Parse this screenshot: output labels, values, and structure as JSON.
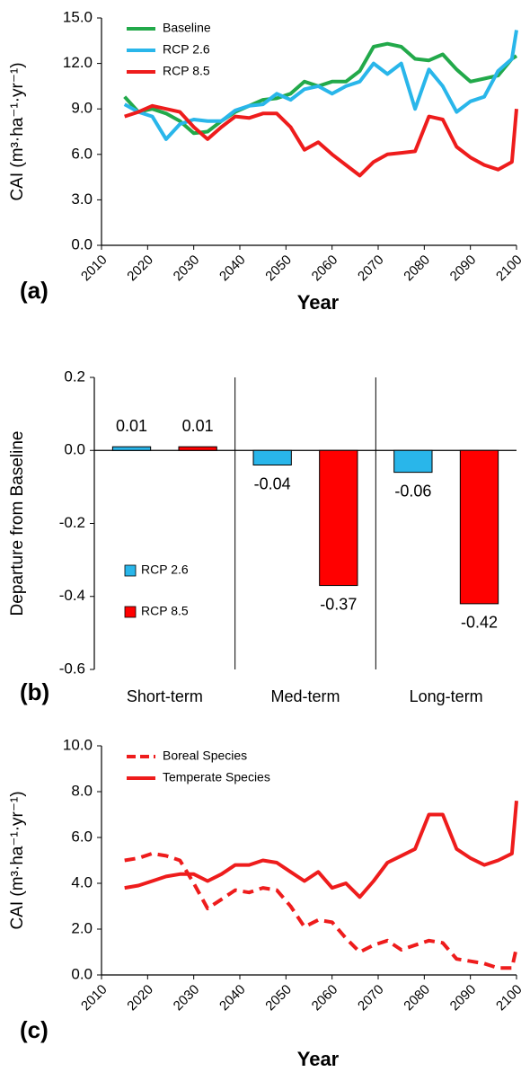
{
  "chart_data": [
    {
      "type": "line",
      "panel_label": "(a)",
      "xlabel": "Year",
      "ylabel": "CAI (m³·ha⁻¹·yr⁻¹)",
      "x": [
        2015,
        2018,
        2021,
        2024,
        2027,
        2030,
        2033,
        2036,
        2039,
        2042,
        2045,
        2048,
        2051,
        2054,
        2057,
        2060,
        2063,
        2066,
        2069,
        2072,
        2075,
        2078,
        2081,
        2084,
        2087,
        2090,
        2093,
        2096,
        2099,
        2100
      ],
      "series": [
        {
          "name": "Baseline",
          "color": "#22a94a",
          "values": [
            9.8,
            8.8,
            9.0,
            8.7,
            8.2,
            7.4,
            7.5,
            8.2,
            8.8,
            9.2,
            9.6,
            9.7,
            10.0,
            10.8,
            10.5,
            10.8,
            10.8,
            11.5,
            13.1,
            13.3,
            13.1,
            12.3,
            12.2,
            12.6,
            11.6,
            10.8,
            11.0,
            11.2,
            12.3,
            12.5
          ]
        },
        {
          "name": "RCP 2.6",
          "color": "#29b6ea",
          "values": [
            9.3,
            8.8,
            8.5,
            7.0,
            8.0,
            8.3,
            8.2,
            8.2,
            8.9,
            9.2,
            9.3,
            10.0,
            9.6,
            10.3,
            10.5,
            10.0,
            10.5,
            10.8,
            12.0,
            11.3,
            12.0,
            9.0,
            11.6,
            10.5,
            8.8,
            9.5,
            9.8,
            11.5,
            12.3,
            14.2
          ]
        },
        {
          "name": "RCP 8.5",
          "color": "#ee1c1c",
          "values": [
            8.5,
            8.8,
            9.2,
            9.0,
            8.8,
            7.8,
            7.0,
            7.8,
            8.5,
            8.4,
            8.7,
            8.7,
            7.8,
            6.3,
            6.8,
            6.0,
            5.3,
            4.6,
            5.5,
            6.0,
            6.1,
            6.2,
            8.5,
            8.3,
            6.5,
            5.8,
            5.3,
            5.0,
            5.5,
            9.0
          ]
        }
      ],
      "xlim": [
        2010,
        2100
      ],
      "xticks": [
        2010,
        2020,
        2030,
        2040,
        2050,
        2060,
        2070,
        2080,
        2090,
        2100
      ],
      "ylim": [
        0,
        15
      ],
      "yticks": [
        {
          "value": 0,
          "label": "0.0"
        },
        {
          "value": 3,
          "label": "3.0"
        },
        {
          "value": 6,
          "label": "6.0"
        },
        {
          "value": 9,
          "label": "9.0"
        },
        {
          "value": 12,
          "label": "12.0"
        },
        {
          "value": 15,
          "label": "15.0"
        }
      ],
      "legend": "upper left"
    },
    {
      "type": "bar",
      "panel_label": "(b)",
      "ylabel": "Departure from Baseline",
      "categories": [
        "Short-term",
        "Med-term",
        "Long-term"
      ],
      "series": [
        {
          "name": "RCP 2.6",
          "color": "#29b6ea",
          "values": [
            0.01,
            -0.04,
            -0.06
          ]
        },
        {
          "name": "RCP 8.5",
          "color": "#ff0000",
          "values": [
            0.01,
            -0.37,
            -0.42
          ]
        }
      ],
      "ylim": [
        -0.6,
        0.2
      ],
      "yticks": [
        -0.6,
        -0.4,
        -0.2,
        {
          "value": 0,
          "label": "0.0"
        },
        0.2
      ],
      "legend": "lower left"
    },
    {
      "type": "line",
      "panel_label": "(c)",
      "xlabel": "Year",
      "ylabel": "CAI (m³·ha⁻¹·yr⁻¹)",
      "x": [
        2015,
        2018,
        2021,
        2024,
        2027,
        2030,
        2033,
        2036,
        2039,
        2042,
        2045,
        2048,
        2051,
        2054,
        2057,
        2060,
        2063,
        2066,
        2069,
        2072,
        2075,
        2078,
        2081,
        2084,
        2087,
        2090,
        2093,
        2096,
        2099,
        2100
      ],
      "series": [
        {
          "name": "Boreal Species",
          "color": "#ee1c1c",
          "line_style": "dashed",
          "values": [
            5.0,
            5.1,
            5.3,
            5.2,
            5.0,
            4.0,
            2.9,
            3.3,
            3.7,
            3.6,
            3.8,
            3.7,
            3.0,
            2.1,
            2.4,
            2.3,
            1.6,
            1.0,
            1.3,
            1.5,
            1.1,
            1.3,
            1.5,
            1.4,
            0.7,
            0.6,
            0.5,
            0.3,
            0.3,
            1.2
          ]
        },
        {
          "name": "Temperate Species",
          "color": "#ee1c1c",
          "line_style": "solid",
          "values": [
            3.8,
            3.9,
            4.1,
            4.3,
            4.4,
            4.4,
            4.1,
            4.4,
            4.8,
            4.8,
            5.0,
            4.9,
            4.5,
            4.1,
            4.5,
            3.8,
            4.0,
            3.4,
            4.1,
            4.9,
            5.2,
            5.5,
            7.0,
            7.0,
            5.5,
            5.1,
            4.8,
            5.0,
            5.3,
            7.6
          ]
        }
      ],
      "xlim": [
        2010,
        2100
      ],
      "xticks": [
        2010,
        2020,
        2030,
        2040,
        2050,
        2060,
        2070,
        2080,
        2090,
        2100
      ],
      "ylim": [
        0,
        10
      ],
      "yticks": [
        {
          "value": 0,
          "label": "0.0"
        },
        {
          "value": 2,
          "label": "2.0"
        },
        {
          "value": 4,
          "label": "4.0"
        },
        {
          "value": 6,
          "label": "6.0"
        },
        {
          "value": 8,
          "label": "8.0"
        },
        {
          "value": 10,
          "label": "10.0"
        }
      ],
      "legend": "upper left"
    }
  ]
}
